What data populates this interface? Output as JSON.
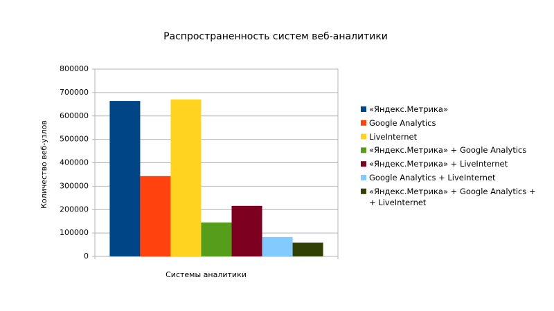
{
  "chart_data": {
    "type": "bar",
    "title": "Распространенность систем веб-аналитики",
    "y_label": "Количество веб-узлов",
    "categories": [
      "Системы аналитики"
    ],
    "series": [
      {
        "name": "«Яндекс.Метрика»",
        "color": "#004586",
        "values": [
          664000
        ]
      },
      {
        "name": "Google Analytics",
        "color": "#ff420e",
        "values": [
          343000
        ]
      },
      {
        "name": "LiveInternet",
        "color": "#ffd320",
        "values": [
          670000
        ]
      },
      {
        "name": "«Яндекс.Метрика» + Google Analytics",
        "color": "#579d1c",
        "values": [
          145000
        ]
      },
      {
        "name": "«Яндекс.Метрика» + LiveInternet",
        "color": "#7e0021",
        "values": [
          216000
        ]
      },
      {
        "name": "Google Analytics + LiveInternet",
        "color": "#83caff",
        "values": [
          83000
        ]
      },
      {
        "name": "«Яндекс.Метрика» + Google Analytics +\n+ LiveInternet",
        "color": "#314004",
        "values": [
          59000
        ]
      }
    ],
    "ylim": [
      0,
      800000
    ],
    "yticks": [
      0,
      100000,
      200000,
      300000,
      400000,
      500000,
      600000,
      700000,
      800000
    ],
    "grid": true,
    "legend": "right"
  }
}
